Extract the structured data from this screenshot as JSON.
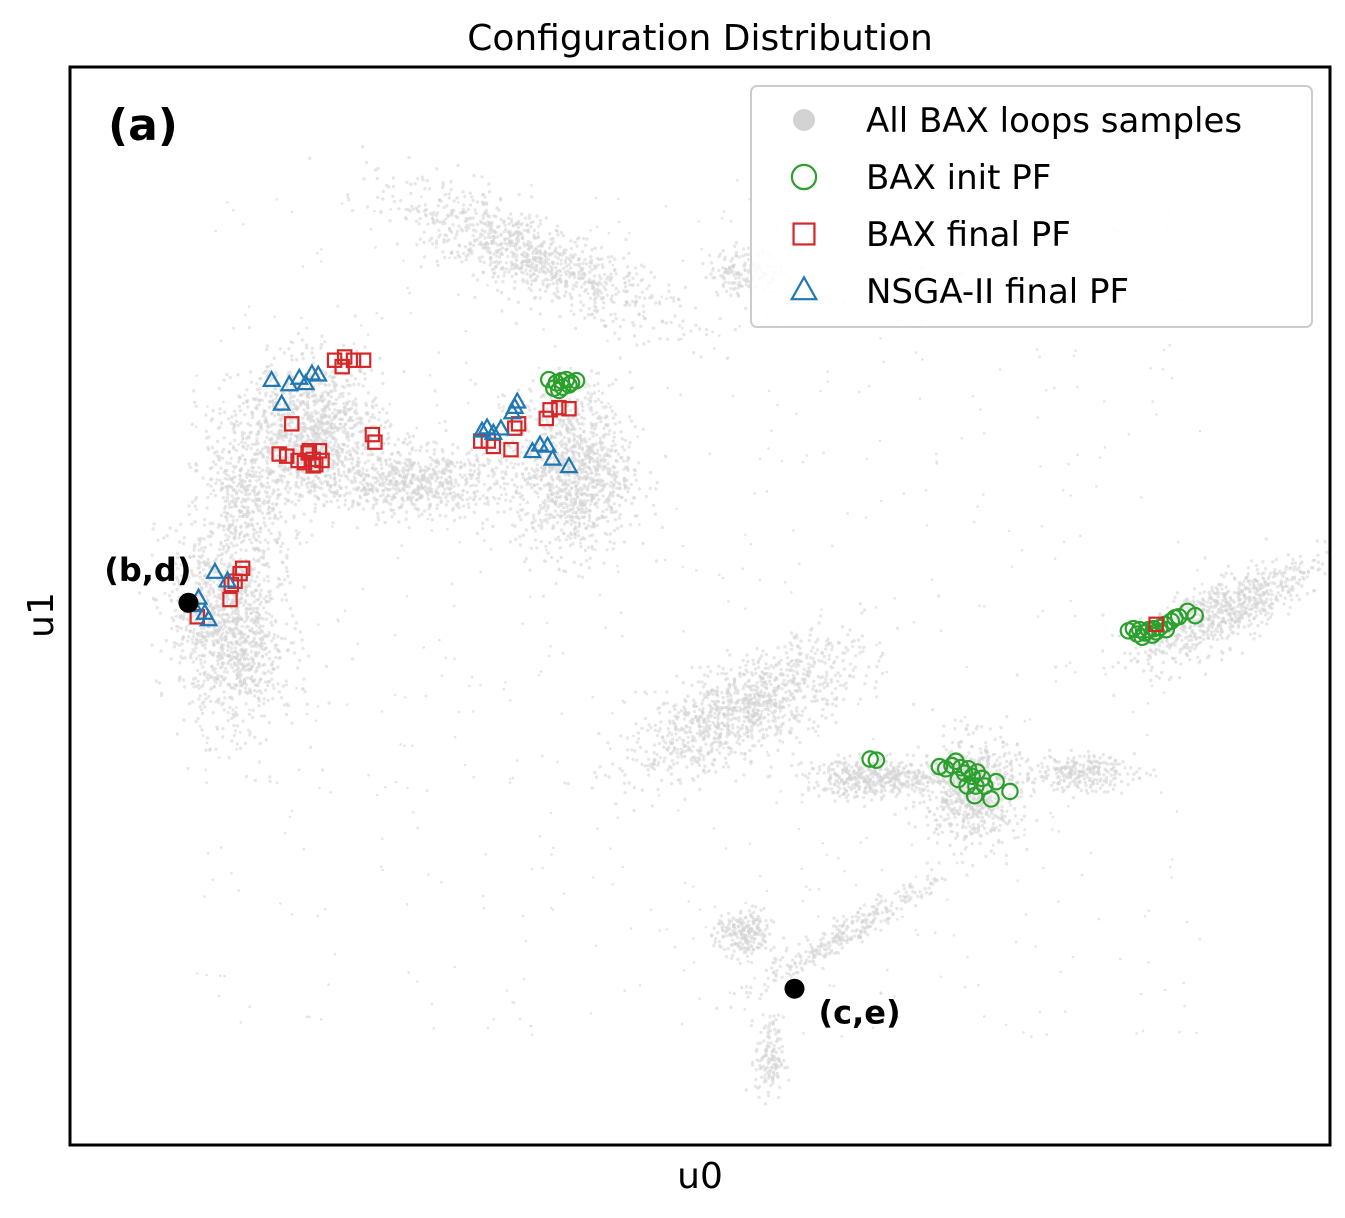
{
  "chart_data": {
    "type": "scatter",
    "title": "Configuration Distribution",
    "xlabel": "u0",
    "ylabel": "u1",
    "panel_label": "(a)",
    "xlim": [
      0,
      100
    ],
    "ylim": [
      0,
      100
    ],
    "ticks_shown": false,
    "grid": false,
    "legend": {
      "placement": "top-right",
      "entries": [
        {
          "label": "All BAX loops samples",
          "marker": "filled-circle",
          "color": "#d3d3d3"
        },
        {
          "label": "BAX init PF",
          "marker": "open-circle",
          "color": "#2ca02c"
        },
        {
          "label": "BAX final PF",
          "marker": "open-square",
          "color": "#d62728"
        },
        {
          "label": "NSGA-II final PF",
          "marker": "open-triangle",
          "color": "#1f77b4"
        }
      ]
    },
    "background_clusters": [
      {
        "cx": 36.5,
        "cy": 82.5,
        "rx": 11.0,
        "ry": 3.0,
        "rot": -28,
        "n": 950
      },
      {
        "cx": 19.0,
        "cy": 66.0,
        "rx": 5.5,
        "ry": 6.0,
        "rot": 0,
        "n": 1200
      },
      {
        "cx": 27.5,
        "cy": 61.5,
        "rx": 6.5,
        "ry": 2.8,
        "rot": 0,
        "n": 650
      },
      {
        "cx": 40.0,
        "cy": 62.5,
        "rx": 4.2,
        "ry": 7.0,
        "rot": 0,
        "n": 1100
      },
      {
        "cx": 12.5,
        "cy": 48.0,
        "rx": 4.0,
        "ry": 8.5,
        "rot": 8,
        "n": 1200
      },
      {
        "cx": 14.0,
        "cy": 59.5,
        "rx": 2.5,
        "ry": 6.0,
        "rot": 15,
        "n": 350
      },
      {
        "cx": 53.5,
        "cy": 40.5,
        "rx": 9.5,
        "ry": 3.5,
        "rot": 32,
        "n": 1100
      },
      {
        "cx": 64.0,
        "cy": 34.0,
        "rx": 5.0,
        "ry": 1.6,
        "rot": 0,
        "n": 450
      },
      {
        "cx": 71.5,
        "cy": 33.0,
        "rx": 3.5,
        "ry": 4.5,
        "rot": 0,
        "n": 700
      },
      {
        "cx": 80.0,
        "cy": 34.5,
        "rx": 4.0,
        "ry": 1.5,
        "rot": 0,
        "n": 260
      },
      {
        "cx": 62.0,
        "cy": 20.0,
        "rx": 8.0,
        "ry": 1.2,
        "rot": 35,
        "n": 300
      },
      {
        "cx": 53.5,
        "cy": 19.5,
        "rx": 2.0,
        "ry": 2.0,
        "rot": 0,
        "n": 220
      },
      {
        "cx": 55.5,
        "cy": 8.0,
        "rx": 1.0,
        "ry": 3.5,
        "rot": 0,
        "n": 140
      },
      {
        "cx": 91.5,
        "cy": 49.5,
        "rx": 7.5,
        "ry": 2.5,
        "rot": 33,
        "n": 750
      },
      {
        "cx": 53.5,
        "cy": 81.0,
        "rx": 2.5,
        "ry": 2.0,
        "rot": 0,
        "n": 160
      },
      {
        "cx": 50.0,
        "cy": 50.0,
        "rx": 40.0,
        "ry": 40.0,
        "rot": 0,
        "n": 700,
        "faint": true
      }
    ],
    "series": [
      {
        "name": "BAX init PF",
        "marker": "open-circle",
        "color": "#2ca02c",
        "points": [
          [
            38.0,
            71.0
          ],
          [
            38.6,
            70.7
          ],
          [
            39.0,
            70.9
          ],
          [
            39.4,
            71.0
          ],
          [
            39.8,
            70.7
          ],
          [
            40.2,
            70.9
          ],
          [
            38.4,
            70.2
          ],
          [
            39.1,
            70.3
          ],
          [
            39.6,
            70.5
          ],
          [
            38.8,
            70.0
          ],
          [
            84.0,
            47.7
          ],
          [
            84.4,
            47.9
          ],
          [
            84.7,
            47.4
          ],
          [
            84.9,
            47.8
          ],
          [
            85.3,
            47.5
          ],
          [
            85.6,
            47.8
          ],
          [
            85.9,
            47.3
          ],
          [
            86.2,
            47.6
          ],
          [
            86.5,
            48.0
          ],
          [
            86.9,
            48.3
          ],
          [
            87.4,
            48.6
          ],
          [
            88.0,
            49.0
          ],
          [
            88.7,
            49.5
          ],
          [
            89.3,
            49.1
          ],
          [
            85.1,
            47.1
          ],
          [
            86.0,
            47.9
          ],
          [
            87.0,
            47.8
          ],
          [
            87.7,
            48.9
          ],
          [
            63.5,
            35.8
          ],
          [
            64.0,
            35.7
          ],
          [
            69.0,
            35.1
          ],
          [
            69.5,
            34.9
          ],
          [
            70.0,
            35.2
          ],
          [
            70.3,
            35.6
          ],
          [
            70.7,
            35.0
          ],
          [
            71.0,
            34.5
          ],
          [
            71.3,
            34.9
          ],
          [
            71.6,
            34.2
          ],
          [
            72.0,
            34.6
          ],
          [
            70.5,
            33.9
          ],
          [
            71.2,
            33.3
          ],
          [
            71.9,
            33.3
          ],
          [
            72.6,
            33.3
          ],
          [
            73.5,
            33.7
          ],
          [
            74.6,
            32.8
          ],
          [
            73.1,
            32.1
          ],
          [
            71.8,
            32.4
          ],
          [
            72.4,
            34.0
          ]
        ]
      },
      {
        "name": "BAX final PF",
        "marker": "open-square",
        "color": "#d62728",
        "points": [
          [
            21.0,
            72.8
          ],
          [
            21.8,
            73.1
          ],
          [
            22.5,
            72.8
          ],
          [
            23.3,
            72.8
          ],
          [
            21.6,
            72.2
          ],
          [
            17.6,
            66.9
          ],
          [
            24.0,
            65.9
          ],
          [
            24.2,
            65.2
          ],
          [
            16.6,
            64.1
          ],
          [
            17.2,
            63.9
          ],
          [
            18.1,
            63.5
          ],
          [
            18.9,
            64.2
          ],
          [
            19.3,
            63.6
          ],
          [
            19.8,
            64.4
          ],
          [
            20.0,
            63.5
          ],
          [
            19.3,
            63.0
          ],
          [
            18.6,
            63.3
          ],
          [
            19.0,
            64.4
          ],
          [
            19.5,
            63.1
          ],
          [
            32.6,
            65.3
          ],
          [
            33.2,
            65.3
          ],
          [
            33.6,
            64.8
          ],
          [
            35.0,
            64.5
          ],
          [
            35.3,
            66.5
          ],
          [
            35.6,
            66.9
          ],
          [
            37.8,
            67.4
          ],
          [
            38.1,
            68.2
          ],
          [
            38.8,
            68.4
          ],
          [
            39.6,
            68.3
          ],
          [
            13.7,
            53.5
          ],
          [
            13.5,
            53.0
          ],
          [
            13.1,
            52.3
          ],
          [
            12.8,
            52.0
          ],
          [
            12.7,
            50.6
          ],
          [
            10.1,
            49.0
          ],
          [
            86.2,
            48.3
          ]
        ]
      },
      {
        "name": "NSGA-II final PF",
        "marker": "open-triangle",
        "color": "#1f77b4",
        "points": [
          [
            16.0,
            70.9
          ],
          [
            17.4,
            70.5
          ],
          [
            18.2,
            71.1
          ],
          [
            19.2,
            71.5
          ],
          [
            19.7,
            71.4
          ],
          [
            18.7,
            70.6
          ],
          [
            16.8,
            68.7
          ],
          [
            32.7,
            66.2
          ],
          [
            33.1,
            66.5
          ],
          [
            33.6,
            66.0
          ],
          [
            34.2,
            66.4
          ],
          [
            35.3,
            68.4
          ],
          [
            35.5,
            68.9
          ],
          [
            35.1,
            67.9
          ],
          [
            36.7,
            64.3
          ],
          [
            37.3,
            64.9
          ],
          [
            37.9,
            64.8
          ],
          [
            38.3,
            63.6
          ],
          [
            39.6,
            62.9
          ],
          [
            11.5,
            53.1
          ],
          [
            12.5,
            52.3
          ],
          [
            9.8,
            50.0
          ],
          [
            10.2,
            50.7
          ],
          [
            10.7,
            49.3
          ],
          [
            11.0,
            48.7
          ]
        ]
      }
    ],
    "annotations": [
      {
        "label": "(b,d)",
        "point": [
          9.4,
          50.3
        ]
      },
      {
        "label": "(c,e)",
        "point": [
          57.5,
          14.5
        ]
      }
    ]
  }
}
